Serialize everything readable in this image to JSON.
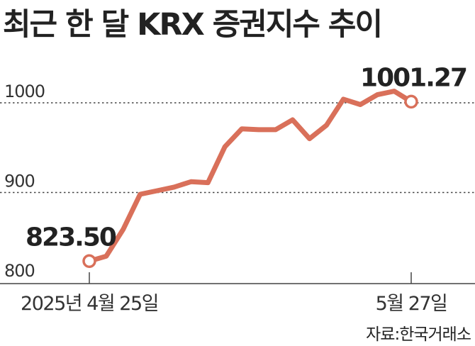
{
  "chart_data": {
    "type": "line",
    "title": "최근 한 달 KRX 증권지수 추이",
    "source": "자료:한국거래소",
    "ylim": [
      800,
      1000
    ],
    "yticks": [
      {
        "value": 1000,
        "label": "1000"
      },
      {
        "value": 900,
        "label": "900"
      },
      {
        "value": 800,
        "label": "800"
      }
    ],
    "xticks": [
      {
        "index": 0,
        "label": "2025년 4월 25일"
      },
      {
        "index": 19,
        "label": "5월 27일"
      }
    ],
    "grid": "dotted horizontal lines at 900 and 1000",
    "series": [
      {
        "values": [
          823.5,
          829,
          859,
          898,
          902,
          906,
          912,
          911,
          951,
          971,
          970,
          970,
          981,
          960,
          975,
          1004,
          998,
          1009,
          1013,
          1001.27
        ],
        "color": "#d9705a"
      }
    ],
    "annotations": [
      {
        "index": 0,
        "label": "823.50"
      },
      {
        "index": 19,
        "label": "1001.27"
      }
    ]
  }
}
